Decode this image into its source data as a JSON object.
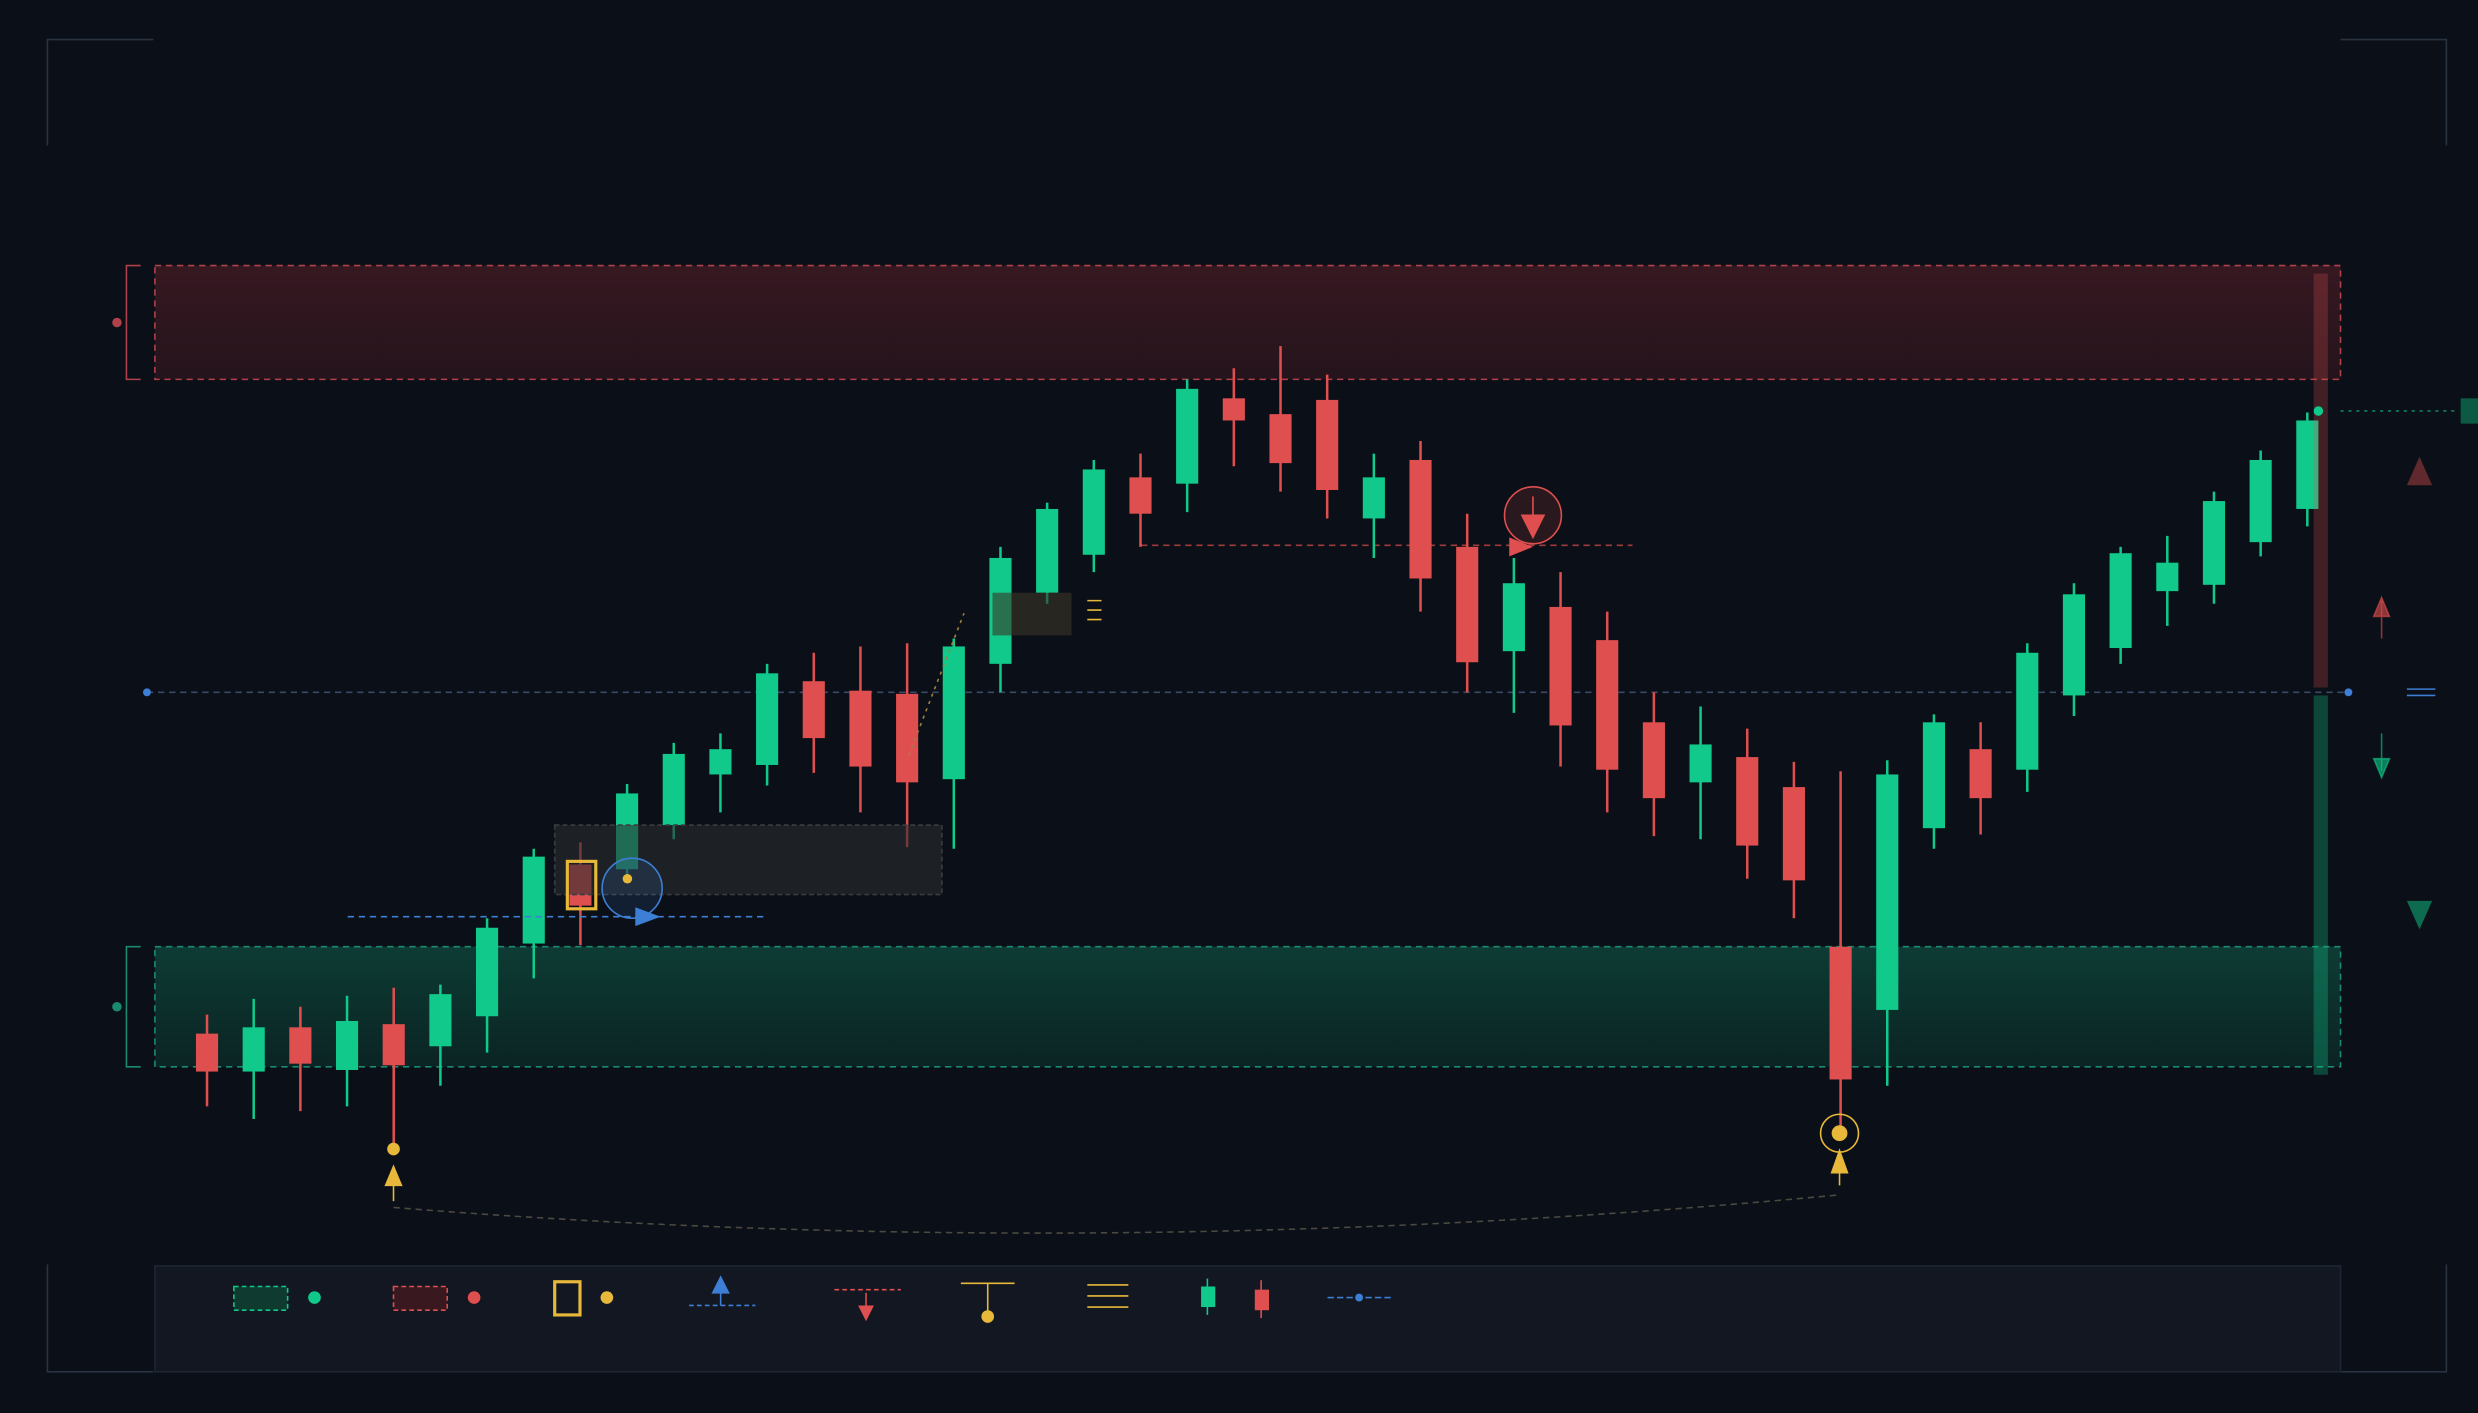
{
  "chart_data": {
    "type": "candlestick",
    "up_color": "#10c98a",
    "down_color": "#e04f4f",
    "ylim": [
      0,
      650
    ],
    "open": [
      146,
      122,
      150,
      123,
      152,
      138,
      157,
      203,
      253,
      250,
      278,
      310,
      316,
      369,
      363,
      361,
      307,
      380,
      425,
      449,
      498,
      494,
      548,
      538,
      547,
      472,
      509,
      454,
      388,
      416,
      395,
      343,
      305,
      321,
      302,
      201,
      161,
      276,
      326,
      313,
      360,
      390,
      426,
      430,
      457,
      478
    ],
    "high": [
      158,
      168,
      163,
      170,
      175,
      177,
      219,
      263,
      267,
      304,
      330,
      336,
      380,
      387,
      391,
      393,
      396,
      454,
      482,
      509,
      513,
      560,
      567,
      581,
      563,
      513,
      521,
      475,
      447,
      438,
      413,
      362,
      353,
      339,
      318,
      312,
      319,
      348,
      343,
      393,
      431,
      454,
      461,
      489,
      515,
      539
    ],
    "low": [
      100,
      92,
      97,
      100,
      73,
      113,
      134,
      181,
      202,
      243,
      269,
      286,
      303,
      311,
      286,
      264,
      263,
      362,
      418,
      438,
      454,
      476,
      505,
      489,
      472,
      447,
      413,
      362,
      349,
      315,
      286,
      271,
      269,
      244,
      219,
      84,
      113,
      263,
      272,
      299,
      347,
      380,
      404,
      418,
      448,
      467
    ],
    "close": [
      122,
      150,
      127,
      154,
      126,
      171,
      213,
      258,
      227,
      298,
      323,
      326,
      374,
      333,
      315,
      305,
      391,
      447,
      478,
      503,
      475,
      554,
      534,
      507,
      490,
      498,
      434,
      381,
      431,
      341,
      313,
      295,
      329,
      265,
      243,
      117,
      310,
      343,
      295,
      387,
      424,
      450,
      444,
      483,
      509,
      534
    ],
    "resistance_zone": [
      560,
      632
    ],
    "support_zone": [
      125,
      201
    ],
    "pivot_level": 362,
    "breakdown_level": 455
  }
}
